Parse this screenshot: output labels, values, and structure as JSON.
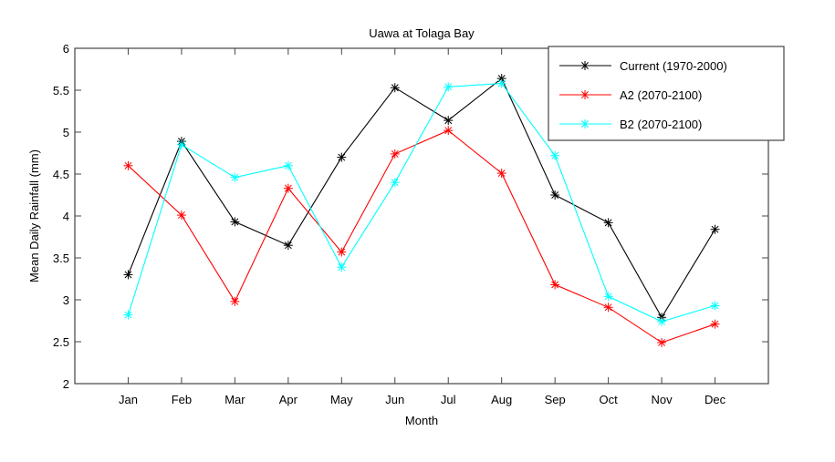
{
  "chart_data": {
    "type": "line",
    "title": "Uawa at Tolaga Bay",
    "xlabel": "Month",
    "ylabel": "Mean Daily Rainfall (mm)",
    "categories": [
      "Jan",
      "Feb",
      "Mar",
      "Apr",
      "May",
      "Jun",
      "Jul",
      "Aug",
      "Sep",
      "Oct",
      "Nov",
      "Dec"
    ],
    "xlim": [
      0,
      13
    ],
    "ylim": [
      2,
      6
    ],
    "yticks": [
      "2",
      "2.5",
      "3",
      "3.5",
      "4",
      "4.5",
      "5",
      "5.5",
      "6"
    ],
    "ytick_values": [
      2,
      2.5,
      3,
      3.5,
      4,
      4.5,
      5,
      5.5,
      6
    ],
    "grid": false,
    "legend_position": "top-right",
    "marker": "asterisk",
    "series": [
      {
        "name": "Current (1970-2000)",
        "color": "#000000",
        "values": [
          3.3,
          4.89,
          3.93,
          3.65,
          4.7,
          5.53,
          5.14,
          5.64,
          4.25,
          3.92,
          2.79,
          3.84
        ]
      },
      {
        "name": "A2 (2070-2100)",
        "color": "#ff0000",
        "values": [
          4.6,
          4.01,
          2.98,
          4.33,
          3.57,
          4.74,
          5.02,
          4.51,
          3.18,
          2.91,
          2.49,
          2.71
        ]
      },
      {
        "name": "B2 (2070-2100)",
        "color": "#00ffff",
        "values": [
          2.82,
          4.85,
          4.46,
          4.6,
          3.39,
          4.4,
          5.54,
          5.58,
          4.72,
          3.04,
          2.74,
          2.93
        ]
      }
    ]
  }
}
